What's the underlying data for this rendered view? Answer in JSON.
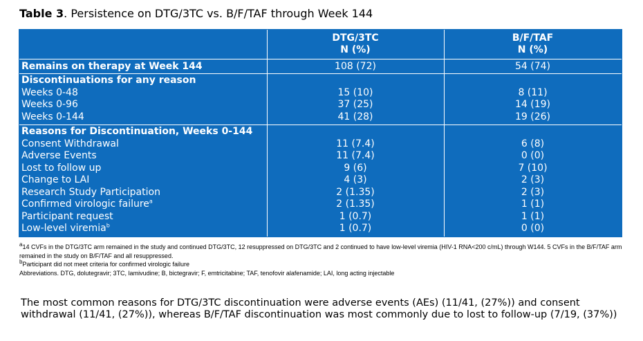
{
  "title": {
    "label": "Table 3",
    "text": ". Persistence on DTG/3TC vs. B/F/TAF through Week 144"
  },
  "table": {
    "headers": [
      {
        "line1": "DTG/3TC",
        "line2": "N (%)"
      },
      {
        "line1": "B/F/TAF",
        "line2": "N (%)"
      }
    ],
    "remains": {
      "label": "Remains on therapy at Week 144",
      "dtg": "108 (72)",
      "bft": "54 (74)"
    },
    "discontinuations": {
      "heading": "Discontinuations for any reason",
      "rows": [
        {
          "label": "Weeks 0-48",
          "dtg": "15 (10)",
          "bft": "8 (11)"
        },
        {
          "label": "Weeks 0-96",
          "dtg": "37 (25)",
          "bft": "14 (19)"
        },
        {
          "label": "Weeks 0-144",
          "dtg": "41 (28)",
          "bft": "19 (26)"
        }
      ]
    },
    "reasons": {
      "heading": "Reasons for Discontinuation, Weeks 0-144",
      "rows": [
        {
          "label": "Consent Withdrawal",
          "sup": "",
          "dtg": "11 (7.4)",
          "bft": "6 (8)"
        },
        {
          "label": "Adverse Events",
          "sup": "",
          "dtg": "11 (7.4)",
          "bft": "0 (0)"
        },
        {
          "label": "Lost to follow up",
          "sup": "",
          "dtg": "9 (6)",
          "bft": "7 (10)"
        },
        {
          "label": "Change to LAI",
          "sup": "",
          "dtg": "4 (3)",
          "bft": "2 (3)"
        },
        {
          "label": "Research Study Participation",
          "sup": "",
          "dtg": "2 (1.35)",
          "bft": "2 (3)"
        },
        {
          "label": "Confirmed virologic failure",
          "sup": "a",
          "dtg": "2 (1.35)",
          "bft": "1 (1)"
        },
        {
          "label": "Participant request",
          "sup": "",
          "dtg": "1 (0.7)",
          "bft": "1 (1)"
        },
        {
          "label": "Low-level viremia",
          "sup": "b",
          "dtg": "1 (0.7)",
          "bft": "0 (0)"
        }
      ]
    }
  },
  "footnotes": {
    "a_mark": "a",
    "a_text": "14 CVFs in the DTG/3TC arm remained in the study and continued DTG/3TC, 12 resuppressed on DTG/3TC and 2 continued to have low-level viremia (HIV-1 RNA<200 c/mL) through W144. 5 CVFs in the B/F/TAF arm remained in the study on B/F/TAF and all resuppressed.",
    "b_mark": "b",
    "b_text": "Participant did not meet criteria for confirmed virologic failure",
    "abbrev": "Abbreviations. DTG, dolutegravir; 3TC, lamivudine; B, bictegravir; F, emtricitabine; TAF, tenofovir alafenamide; LAI, long acting injectable"
  },
  "summary": "The most common reasons for DTG/3TC discontinuation were adverse events (AEs) (11/41, (27%)) and consent withdrawal (11/41, (27%)), whereas B/F/TAF discontinuation was most commonly due to lost to follow-up (7/19, (37%))"
}
